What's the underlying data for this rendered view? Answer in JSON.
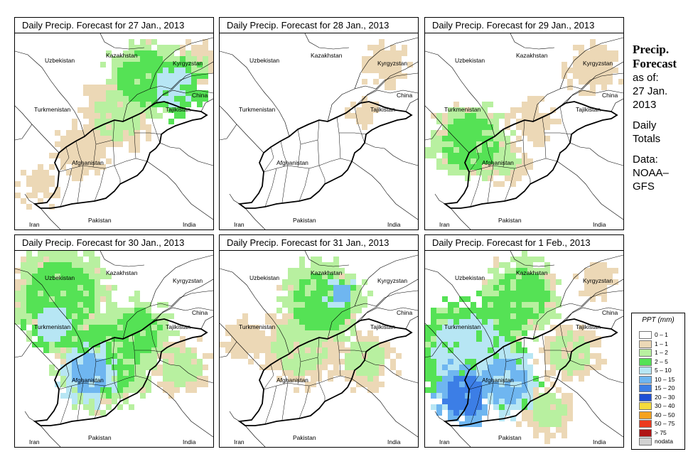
{
  "panels": [
    {
      "title": "Daily Precip. Forecast for  27 Jan., 2013"
    },
    {
      "title": "Daily Precip. Forecast for  28 Jan., 2013"
    },
    {
      "title": "Daily Precip. Forecast for  29 Jan., 2013"
    },
    {
      "title": "Daily Precip. Forecast for  30 Jan., 2013"
    },
    {
      "title": "Daily Precip. Forecast for  31 Jan., 2013"
    },
    {
      "title": "Daily Precip. Forecast for  1 Feb., 2013"
    }
  ],
  "map_labels": {
    "uzbekistan": "Uzbekistan",
    "kazakhstan": "Kazakhstan",
    "kyrgyzstan": "Kyrgyzstan",
    "china": "China",
    "tajikistan": "Tajikistan",
    "turkmenistan": "Turkmenistan",
    "afghanistan": "Afghanistan",
    "pakistan": "Pakistan",
    "iran": "Iran",
    "india": "India"
  },
  "sidebar": {
    "title_line1": "Precip.",
    "title_line2": "Forecast",
    "asof_line1": "as of:",
    "asof_line2": "27 Jan.",
    "asof_line3": "2013",
    "totals_line1": "Daily",
    "totals_line2": "Totals",
    "data_line1": "Data:",
    "data_line2": "NOAA–",
    "data_line3": "GFS"
  },
  "legend": {
    "title": "PPT (mm)",
    "items": [
      {
        "label": "0 – 1",
        "color": "#ffffff"
      },
      {
        "label": "1 – 1",
        "color": "#ecd8b6"
      },
      {
        "label": "1 – 2",
        "color": "#b8f0a0"
      },
      {
        "label": "2 – 5",
        "color": "#55e255"
      },
      {
        "label": "5 – 10",
        "color": "#b7e6f4"
      },
      {
        "label": "10 – 15",
        "color": "#6fb6f0"
      },
      {
        "label": "15 – 20",
        "color": "#3c7ee6"
      },
      {
        "label": "20 – 30",
        "color": "#1e4fd4"
      },
      {
        "label": "30 – 40",
        "color": "#f6dc3c"
      },
      {
        "label": "40 – 50",
        "color": "#f5a21e"
      },
      {
        "label": "50 – 75",
        "color": "#ec3a1e"
      },
      {
        "label": "> 75",
        "color": "#b01414"
      },
      {
        "label": "nodata",
        "color": "#d2d2d2"
      }
    ]
  }
}
